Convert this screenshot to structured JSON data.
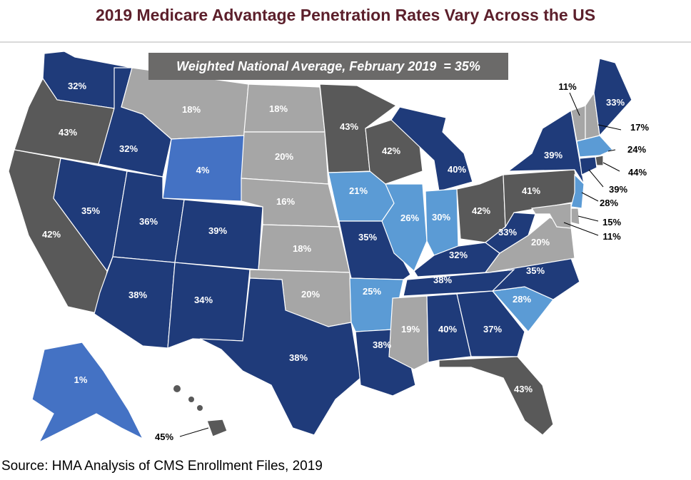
{
  "title": "2019 Medicare Advantage Penetration Rates Vary Across the US",
  "national_average": "Weighted National Average, February 2019  = 35%",
  "source": "Source: HMA Analysis of CMS Enrollment Files, 2019",
  "colors": {
    "dark_blue": "#1f3b7a",
    "medium_blue": "#4472c4",
    "light_blue": "#5b9bd5",
    "light_gray": "#a6a6a6",
    "dark_gray": "#595959",
    "title": "#5c1f2b"
  },
  "states": {
    "WA": "32%",
    "OR": "43%",
    "CA": "42%",
    "ID": "32%",
    "NV": "35%",
    "MT": "18%",
    "WY": "4%",
    "UT": "36%",
    "AZ": "38%",
    "CO": "39%",
    "NM": "34%",
    "ND": "18%",
    "SD": "20%",
    "NE": "16%",
    "KS": "18%",
    "OK": "20%",
    "TX": "38%",
    "MN": "43%",
    "IA": "21%",
    "MO": "35%",
    "AR": "25%",
    "LA": "38%",
    "WI": "42%",
    "IL": "26%",
    "MI": "40%",
    "IN": "30%",
    "OH": "42%",
    "KY": "32%",
    "TN": "38%",
    "MS": "19%",
    "AL": "40%",
    "GA": "37%",
    "FL": "43%",
    "SC": "28%",
    "NC": "35%",
    "VA": "20%",
    "WV": "33%",
    "PA": "41%",
    "NY": "39%",
    "ME": "33%",
    "AK": "1%",
    "HI": "45%",
    "VT": "11%",
    "NH": "17%",
    "MA": "24%",
    "RI": "44%",
    "CT": "39%",
    "NJ": "28%",
    "DE": "15%",
    "MD": "11%"
  }
}
